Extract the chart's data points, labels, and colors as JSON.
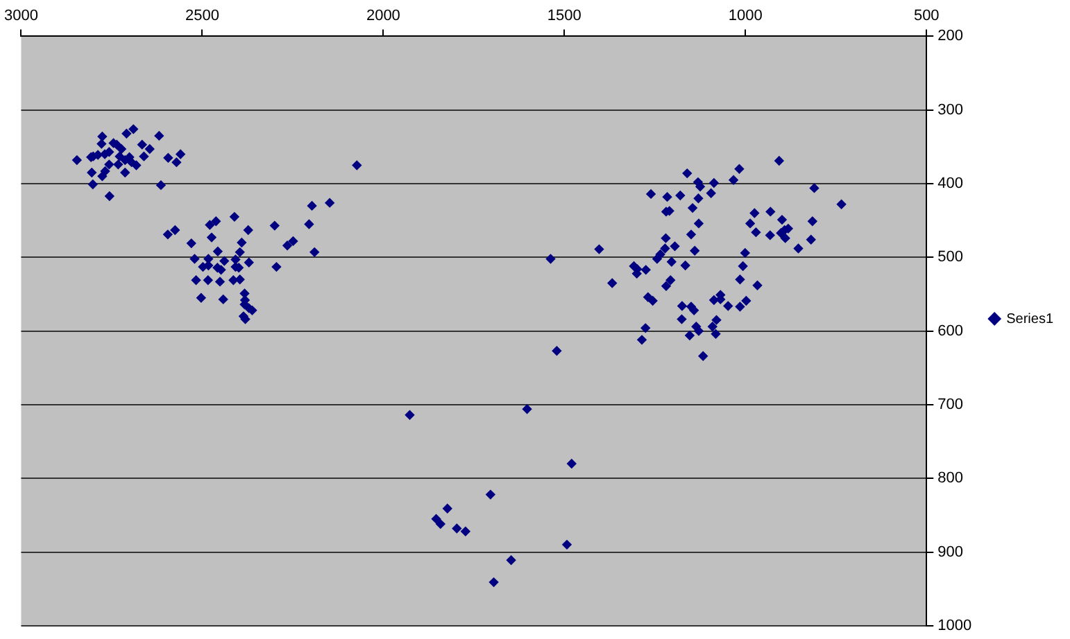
{
  "chart_data": {
    "type": "scatter",
    "xlim": [
      3000,
      500
    ],
    "xticks": [
      3000,
      2500,
      2000,
      1500,
      1000,
      500
    ],
    "ylim": [
      1000,
      200
    ],
    "yticks": [
      200,
      300,
      400,
      500,
      600,
      700,
      800,
      900,
      1000
    ],
    "grid": "y",
    "legend": "right",
    "marker": "diamond",
    "series": [
      {
        "name": "Series1",
        "color": "#000080",
        "x": [
          2846,
          2807,
          2801,
          2788,
          2776,
          2778,
          2769,
          2757,
          2745,
          2736,
          2728,
          2723,
          2713,
          2709,
          2690,
          2701,
          2732,
          2713,
          2695,
          2682,
          2666,
          2661,
          2645,
          2619,
          2594,
          2571,
          2560,
          2614,
          2805,
          2776,
          2768,
          2757,
          2802,
          2756,
          2595,
          2575,
          2530,
          2479,
          2462,
          2411,
          2373,
          2474,
          2391,
          2396,
          2457,
          2521,
          2483,
          2439,
          2408,
          2371,
          2498,
          2483,
          2458,
          2448,
          2408,
          2399,
          2517,
          2484,
          2451,
          2414,
          2396,
          2503,
          2442,
          2383,
          2382,
          2383,
          2371,
          2362,
          2386,
          2381,
          2300,
          2295,
          2265,
          2249,
          2205,
          2197,
          2148,
          2190,
          2073,
          1404,
          1538,
          1368,
          1521,
          1927,
          1603,
          1480,
          1704,
          1823,
          1854,
          1842,
          1797,
          1773,
          1493,
          1647,
          1695,
          1261,
          1216,
          1180,
          1161,
          1131,
          1125,
          1087,
          1095,
          1130,
          1146,
          1219,
          1210,
          1017,
          1033,
          907,
          810,
          735,
          975,
          931,
          987,
          899,
          971,
          932,
          902,
          892,
          882,
          890,
          815,
          819,
          854,
          1129,
          1150,
          1220,
          1222,
          1195,
          1140,
          1001,
          1007,
          1235,
          1244,
          1204,
          1166,
          1308,
          1299,
          1300,
          1275,
          1207,
          1219,
          1015,
          967,
          1269,
          1256,
          1175,
          1150,
          1142,
          1087,
          1069,
          1069,
          1048,
          1015,
          998,
          1176,
          1276,
          1286,
          1136,
          1129,
          1154,
          1091,
          1080,
          1082,
          1117
        ],
        "values": [
          368,
          364,
          363,
          361,
          336,
          346,
          360,
          357,
          345,
          347,
          363,
          353,
          368,
          332,
          326,
          364,
          374,
          385,
          371,
          375,
          347,
          363,
          353,
          335,
          365,
          371,
          360,
          402,
          385,
          390,
          383,
          374,
          401,
          417,
          469,
          463,
          481,
          456,
          451,
          445,
          463,
          473,
          480,
          493,
          492,
          502,
          502,
          505,
          503,
          507,
          513,
          511,
          514,
          517,
          513,
          514,
          531,
          531,
          533,
          531,
          530,
          555,
          557,
          549,
          558,
          564,
          569,
          572,
          580,
          584,
          457,
          513,
          484,
          478,
          455,
          430,
          426,
          493,
          375,
          489,
          502,
          535,
          627,
          714,
          706,
          780,
          822,
          841,
          855,
          862,
          868,
          872,
          890,
          911,
          941,
          414,
          418,
          416,
          386,
          398,
          404,
          399,
          413,
          420,
          433,
          438,
          437,
          380,
          395,
          369,
          406,
          428,
          440,
          438,
          454,
          449,
          466,
          470,
          467,
          463,
          461,
          474,
          451,
          476,
          488,
          454,
          469,
          474,
          488,
          485,
          491,
          494,
          512,
          496,
          502,
          506,
          511,
          512,
          516,
          522,
          517,
          531,
          539,
          530,
          538,
          554,
          559,
          566,
          567,
          572,
          558,
          551,
          557,
          566,
          567,
          559,
          584,
          596,
          612,
          594,
          600,
          606,
          594,
          585,
          604,
          634
        ]
      }
    ]
  }
}
